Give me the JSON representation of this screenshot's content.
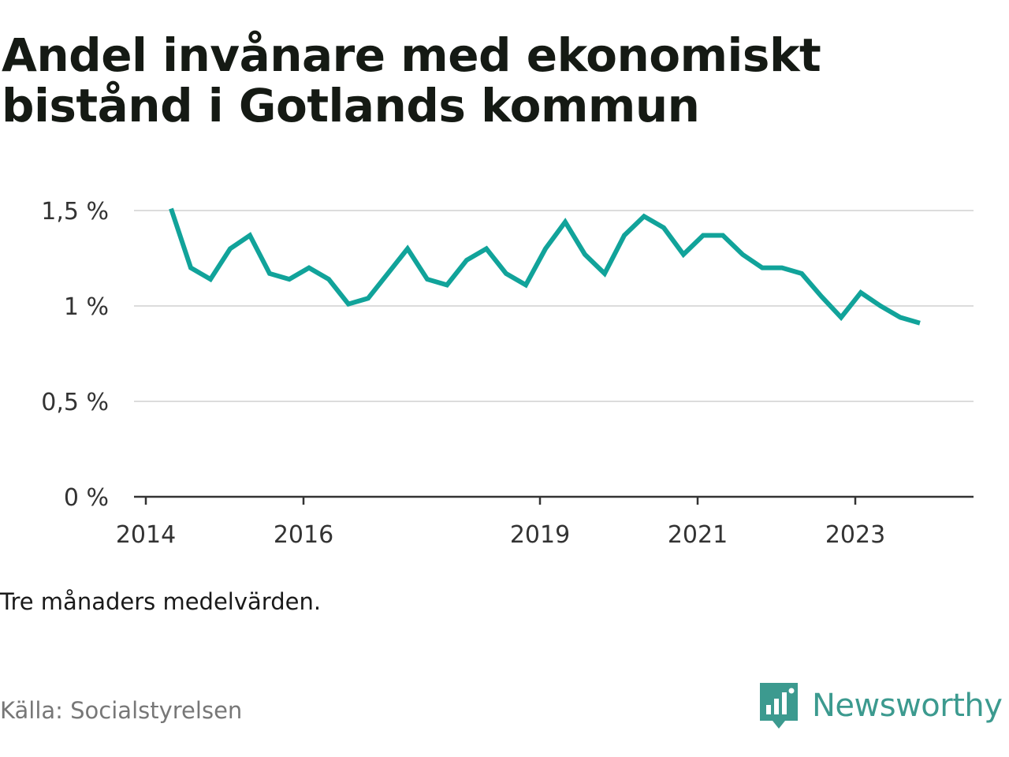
{
  "title": "Andel invånare med ekonomiskt bistånd i Gotlands kommun",
  "note": "Tre månaders medelvärden.",
  "source": "Källa: Socialstyrelsen",
  "brand": {
    "name": "Newsworthy",
    "icon": "newsworthy-logo-icon",
    "color": "#3c9a8f"
  },
  "chart_data": {
    "type": "line",
    "title": "Andel invånare med ekonomiskt bistånd i Gotlands kommun",
    "xlabel": "",
    "ylabel": "",
    "ylim": [
      0,
      1.5
    ],
    "y_ticks": [
      {
        "value": 0,
        "label": "0 %"
      },
      {
        "value": 0.5,
        "label": "0,5 %"
      },
      {
        "value": 1,
        "label": "1 %"
      },
      {
        "value": 1.5,
        "label": "1,5 %"
      }
    ],
    "x_ticks": [
      {
        "value": 2014,
        "label": "2014"
      },
      {
        "value": 2016,
        "label": "2016"
      },
      {
        "value": 2019,
        "label": "2019"
      },
      {
        "value": 2021,
        "label": "2021"
      },
      {
        "value": 2023,
        "label": "2023"
      }
    ],
    "xlim": [
      2014,
      2024.5
    ],
    "grid": true,
    "line_color": "#11a39a",
    "series": [
      {
        "x": [
          2014.32,
          2014.57,
          2014.82,
          2015.07,
          2015.32,
          2015.57,
          2015.82,
          2016.07,
          2016.32,
          2016.57,
          2016.82,
          2017.07,
          2017.32,
          2017.57,
          2017.82,
          2018.07,
          2018.32,
          2018.57,
          2018.82,
          2019.07,
          2019.32,
          2019.57,
          2019.82,
          2020.07,
          2020.32,
          2020.57,
          2020.82,
          2021.07,
          2021.32,
          2021.57,
          2021.82,
          2022.07,
          2022.32,
          2022.57,
          2022.82,
          2023.07,
          2023.32,
          2023.57,
          2023.82
        ],
        "values": [
          1.51,
          1.2,
          1.14,
          1.3,
          1.37,
          1.17,
          1.14,
          1.2,
          1.14,
          1.01,
          1.04,
          1.17,
          1.3,
          1.14,
          1.11,
          1.24,
          1.3,
          1.17,
          1.11,
          1.3,
          1.44,
          1.27,
          1.17,
          1.37,
          1.47,
          1.41,
          1.27,
          1.37,
          1.37,
          1.27,
          1.2,
          1.2,
          1.17,
          1.05,
          0.94,
          1.07,
          1.0,
          0.94,
          0.91
        ]
      }
    ]
  }
}
